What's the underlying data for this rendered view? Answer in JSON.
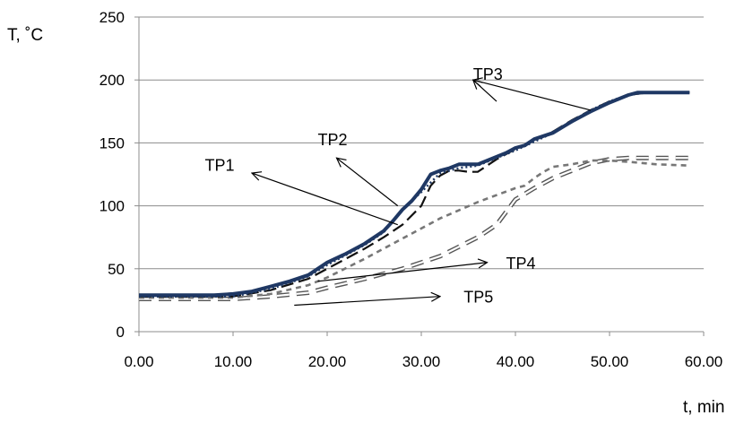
{
  "chart_data": {
    "type": "line",
    "xlabel": "t, min",
    "ylabel": "T, ˚C",
    "xlim": [
      0,
      60
    ],
    "ylim": [
      0,
      250
    ],
    "xticks": [
      "0.00",
      "10.00",
      "20.00",
      "30.00",
      "40.00",
      "50.00",
      "60.00"
    ],
    "yticks": [
      "0",
      "50",
      "100",
      "150",
      "200",
      "250"
    ],
    "grid": "horizontal",
    "series": [
      {
        "name": "TP1",
        "style": "solid-thick",
        "color": "#1F3864",
        "x": [
          0,
          5,
          8,
          10,
          12,
          14,
          16,
          18,
          20,
          22,
          24,
          26,
          27,
          28,
          29,
          30,
          31,
          32,
          33,
          34,
          35,
          36,
          37,
          38,
          39,
          40,
          41,
          42,
          44,
          46,
          48,
          50,
          52,
          53,
          55,
          58.5
        ],
        "y": [
          29,
          29,
          29,
          30,
          32,
          36,
          40,
          45,
          55,
          62,
          70,
          80,
          88,
          97,
          104,
          113,
          125,
          128,
          130,
          133,
          133,
          133,
          136,
          139,
          142,
          146,
          148,
          153,
          158,
          167,
          175,
          182,
          188,
          190,
          190,
          190
        ]
      },
      {
        "name": "TP2",
        "style": "dotted",
        "color": "#1F3864",
        "x": [
          0,
          10,
          14,
          18,
          20,
          22,
          24,
          26,
          28,
          30,
          32,
          34,
          36,
          38,
          40,
          42,
          44,
          46,
          48,
          50,
          52,
          54,
          58.5
        ],
        "y": [
          28,
          28,
          34,
          44,
          53,
          61,
          69,
          79,
          97,
          111,
          126,
          130,
          132,
          138,
          144,
          151,
          158,
          167,
          176,
          183,
          188,
          190,
          190
        ]
      },
      {
        "name": "TP3",
        "style": "long-dash",
        "color": "#111111",
        "x": [
          0,
          10,
          14,
          18,
          20,
          22,
          24,
          26,
          28,
          30,
          31,
          32,
          33,
          34,
          35,
          36,
          38,
          40,
          42,
          44,
          46,
          48,
          50,
          52,
          54,
          58.5
        ],
        "y": [
          28,
          28,
          33,
          42,
          50,
          58,
          66,
          75,
          85,
          100,
          116,
          124,
          128,
          128,
          127,
          127,
          137,
          145,
          152,
          159,
          168,
          176,
          183,
          188,
          190,
          190
        ]
      },
      {
        "name": "TP4",
        "style": "short-dash",
        "color": "#777777",
        "x": [
          0,
          10,
          14,
          18,
          20,
          24,
          28,
          32,
          36,
          40,
          41,
          42,
          43,
          44,
          46,
          48,
          50,
          52,
          55,
          58.5
        ],
        "y": [
          27,
          27,
          30,
          37,
          43,
          58,
          74,
          90,
          103,
          114,
          116,
          122,
          127,
          131,
          133,
          136,
          136,
          135,
          133,
          132
        ]
      },
      {
        "name": "TP5",
        "style": "hollow-dash",
        "color": "#555555",
        "x": [
          0,
          10,
          14,
          18,
          20,
          24,
          28,
          32,
          36,
          38,
          39,
          40,
          42,
          44,
          46,
          48,
          50,
          52,
          55,
          58.5
        ],
        "y": [
          26,
          26,
          28,
          31,
          35,
          42,
          50,
          60,
          75,
          85,
          95,
          105,
          114,
          122,
          128,
          134,
          137,
          138,
          138,
          138
        ]
      }
    ],
    "annotations": [
      {
        "label": "TP1",
        "text_at": [
          7,
          128
        ],
        "arrow_from": [
          27.5,
          85
        ],
        "arrow_to": [
          12,
          126
        ]
      },
      {
        "label": "TP2",
        "text_at": [
          19,
          148
        ],
        "arrow_from": [
          27.5,
          100
        ],
        "arrow_to": [
          21,
          138
        ]
      },
      {
        "label": "TP3",
        "text_at": [
          35.5,
          200
        ],
        "arrow_from": [
          38,
          183
        ],
        "arrow_to": [
          35.5,
          200
        ],
        "arrow2_from": [
          48,
          176
        ]
      },
      {
        "label": "TP4",
        "text_at": [
          39,
          50
        ],
        "arrow_from": [
          19,
          40
        ],
        "arrow_to": [
          37,
          55
        ]
      },
      {
        "label": "TP5",
        "text_at": [
          34.5,
          23
        ],
        "arrow_from": [
          16.5,
          21
        ],
        "arrow_to": [
          32,
          28
        ]
      }
    ]
  }
}
